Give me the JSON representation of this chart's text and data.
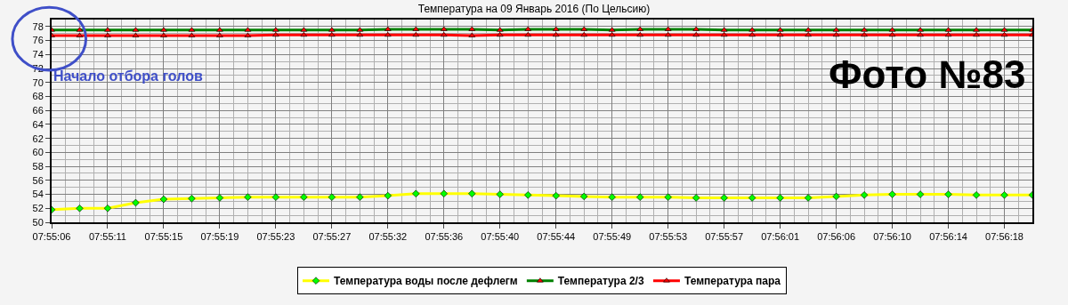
{
  "chart_data": {
    "type": "line",
    "title": "Температура на 09 Январь 2016 (По Цельсию)",
    "categories": [
      "07:55:06",
      null,
      "07:55:11",
      null,
      "07:55:15",
      null,
      "07:55:19",
      null,
      "07:55:23",
      null,
      "07:55:27",
      null,
      "07:55:32",
      null,
      "07:55:36",
      null,
      "07:55:40",
      null,
      "07:55:44",
      null,
      "07:55:49",
      null,
      "07:55:53",
      null,
      "07:55:57",
      null,
      "07:56:01",
      null,
      "07:56:06",
      null,
      "07:56:10",
      null,
      "07:56:14",
      null,
      "07:56:18",
      null
    ],
    "series": [
      {
        "name": "Температура воды после дефлегм",
        "color": "#ffff00",
        "marker": "diamond",
        "values": [
          51.8,
          52.0,
          52.0,
          52.8,
          53.3,
          53.4,
          53.5,
          53.6,
          53.6,
          53.6,
          53.6,
          53.6,
          53.8,
          54.1,
          54.1,
          54.1,
          54.0,
          53.9,
          53.8,
          53.7,
          53.6,
          53.6,
          53.6,
          53.5,
          53.5,
          53.5,
          53.5,
          53.5,
          53.7,
          53.9,
          54.0,
          54.0,
          54.0,
          53.9,
          53.9,
          53.9
        ]
      },
      {
        "name": "Температура 2/3",
        "color": "#008000",
        "marker": "triangle",
        "values": [
          77.5,
          77.5,
          77.5,
          77.5,
          77.5,
          77.5,
          77.5,
          77.5,
          77.5,
          77.5,
          77.5,
          77.5,
          77.6,
          77.6,
          77.6,
          77.6,
          77.5,
          77.6,
          77.6,
          77.6,
          77.5,
          77.6,
          77.6,
          77.6,
          77.5,
          77.5,
          77.5,
          77.5,
          77.5,
          77.5,
          77.5,
          77.5,
          77.5,
          77.5,
          77.5,
          77.5
        ]
      },
      {
        "name": "Температура пара",
        "color": "#ff0000",
        "marker": "triangle",
        "values": [
          76.7,
          76.7,
          76.7,
          76.7,
          76.7,
          76.7,
          76.7,
          76.7,
          76.8,
          76.8,
          76.8,
          76.8,
          76.8,
          76.8,
          76.8,
          76.7,
          76.8,
          76.8,
          76.8,
          76.8,
          76.8,
          76.8,
          76.8,
          76.8,
          76.8,
          76.8,
          76.8,
          76.8,
          76.8,
          76.8,
          76.8,
          76.8,
          76.8,
          76.8,
          76.8,
          76.8
        ]
      }
    ],
    "ylim": [
      50,
      79
    ],
    "yticks": [
      50,
      52,
      54,
      56,
      58,
      60,
      62,
      64,
      66,
      68,
      70,
      72,
      74,
      76,
      78
    ],
    "grid": true,
    "legend": "bottom",
    "line_style": "solid",
    "annotations": [
      "Начало отбора голов",
      "Фото №83"
    ]
  }
}
